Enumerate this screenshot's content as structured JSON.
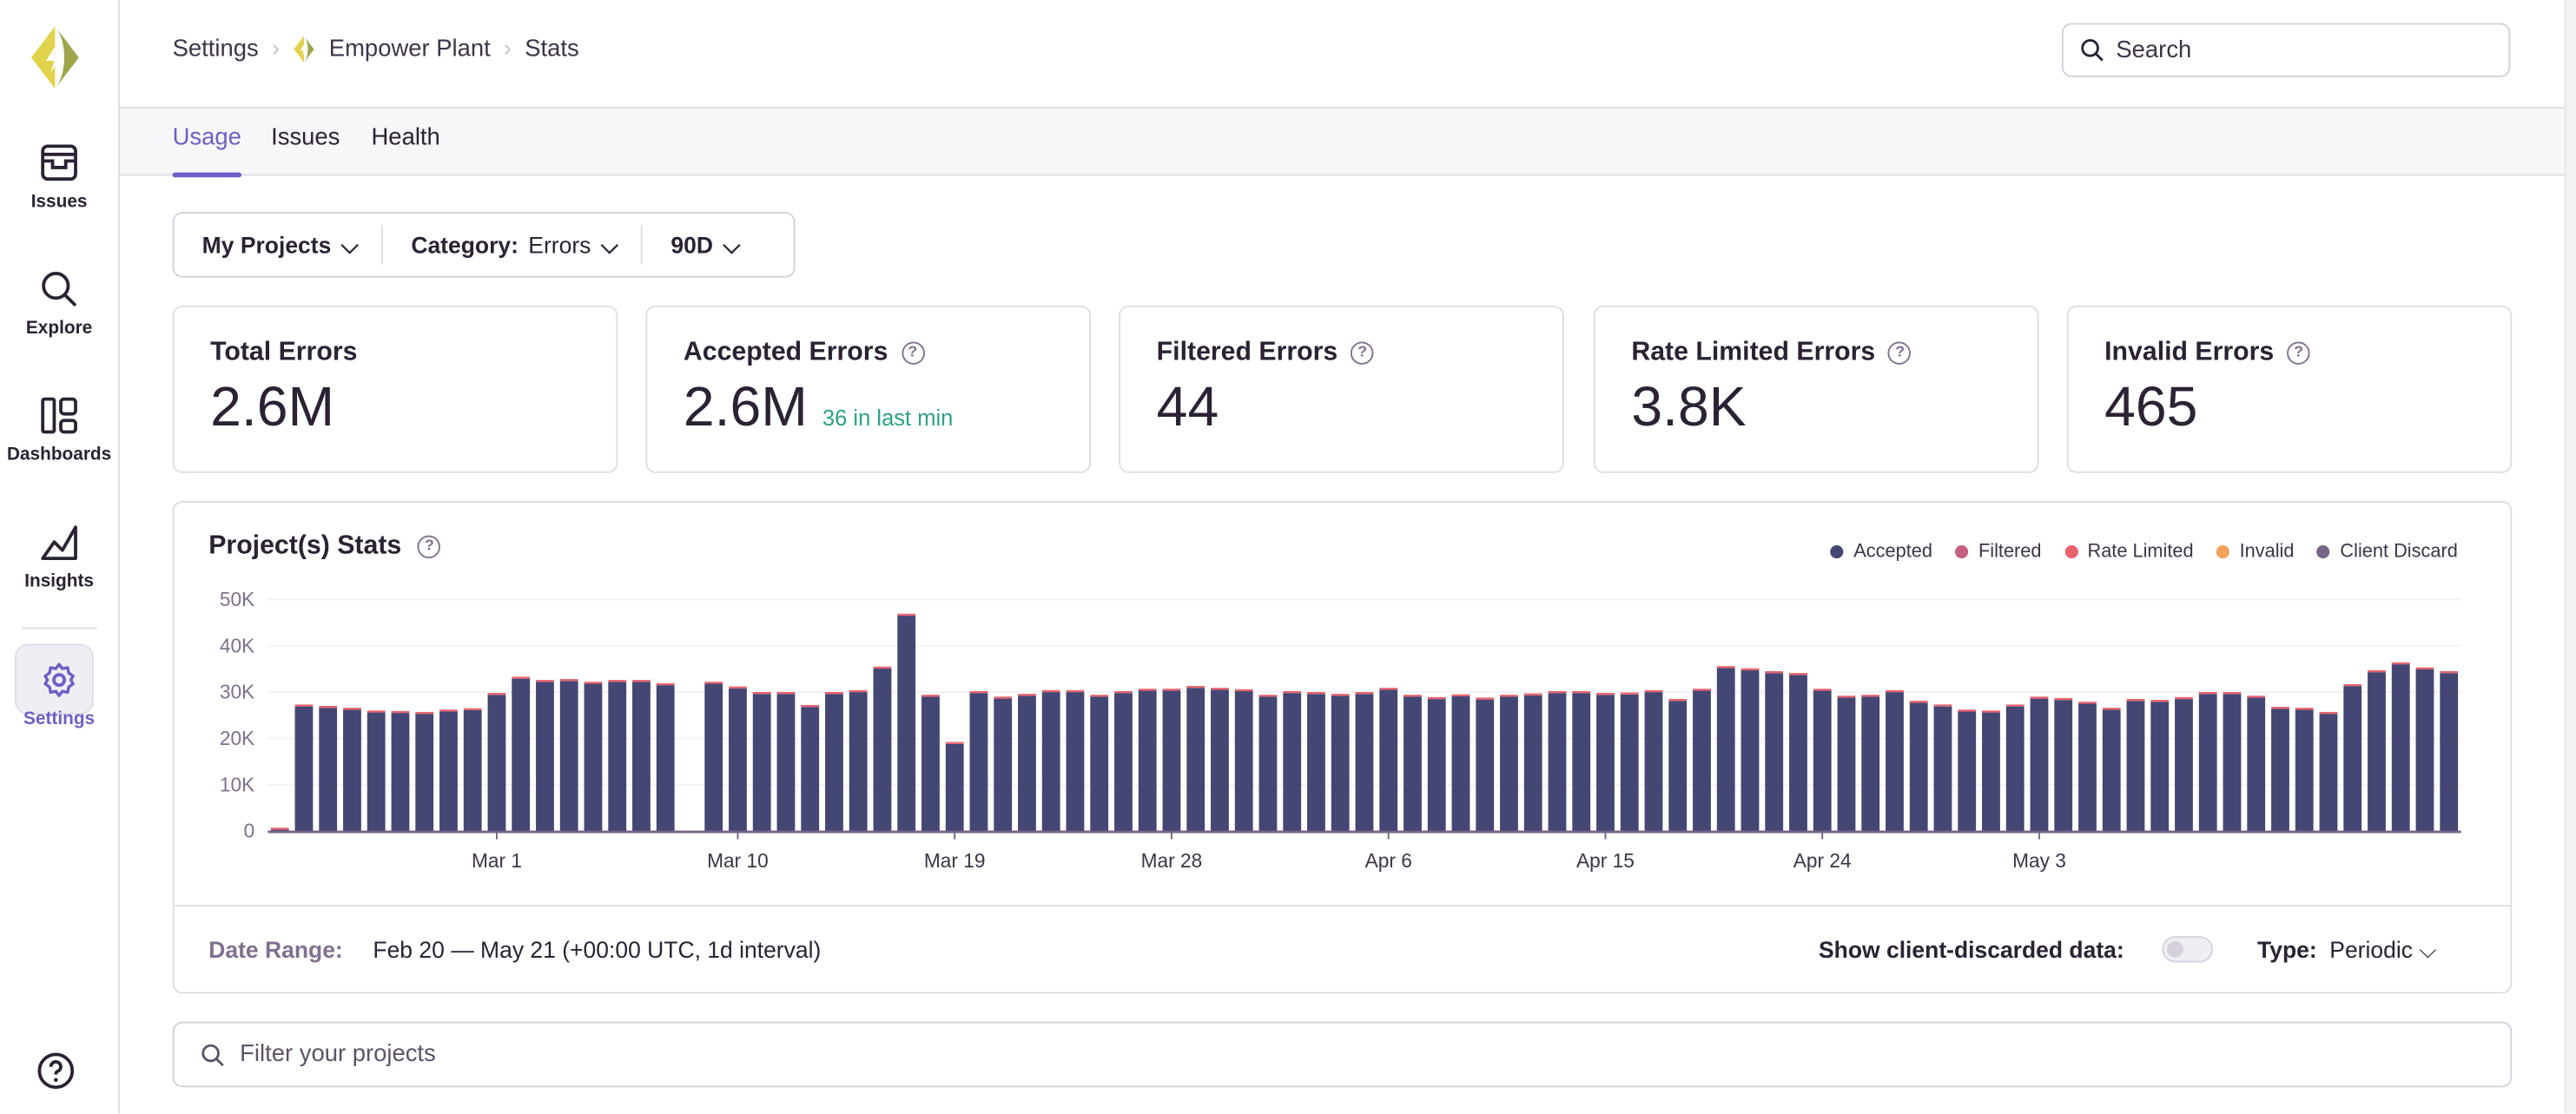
{
  "sidebar": {
    "items": [
      {
        "label": "Issues",
        "icon": "inbox-icon"
      },
      {
        "label": "Explore",
        "icon": "search-icon"
      },
      {
        "label": "Dashboards",
        "icon": "dashboard-icon"
      },
      {
        "label": "Insights",
        "icon": "chart-icon"
      },
      {
        "label": "Settings",
        "icon": "gear-icon",
        "active": true
      }
    ],
    "help_icon": "question-icon"
  },
  "breadcrumb": [
    "Settings",
    "Empower Plant",
    "Stats"
  ],
  "search": {
    "placeholder": "Search"
  },
  "tabs": [
    {
      "label": "Usage",
      "active": true
    },
    {
      "label": "Issues"
    },
    {
      "label": "Health"
    }
  ],
  "filters": {
    "projects": "My Projects",
    "category_label": "Category:",
    "category_value": "Errors",
    "period": "90D"
  },
  "cards": [
    {
      "title": "Total Errors",
      "value": "2.6M"
    },
    {
      "title": "Accepted Errors",
      "value": "2.6M",
      "sub": "36 in last min"
    },
    {
      "title": "Filtered Errors",
      "value": "44"
    },
    {
      "title": "Rate Limited Errors",
      "value": "3.8K"
    },
    {
      "title": "Invalid Errors",
      "value": "465"
    }
  ],
  "stats": {
    "title": "Project(s) Stats",
    "date_range_label": "Date Range:",
    "date_range_value": "Feb 20 — May 21 (+00:00 UTC, 1d interval)",
    "client_discard_label": "Show client-discarded data:",
    "client_discard_on": false,
    "type_label": "Type:",
    "type_value": "Periodic"
  },
  "project_filter": {
    "placeholder": "Filter your projects"
  },
  "colors": {
    "accent": "#6c5fc7",
    "accepted": "#444674",
    "filtered": "#c4617f",
    "rate_limited": "#e9626e",
    "invalid": "#f2a25a",
    "client_discard": "#776589",
    "positive": "#2ba185"
  },
  "chart_data": {
    "type": "bar",
    "stacked": true,
    "legend": [
      "Accepted",
      "Filtered",
      "Rate Limited",
      "Invalid",
      "Client Discard"
    ],
    "legend_position": "top-right",
    "yticks": [
      "0",
      "10K",
      "20K",
      "30K",
      "40K",
      "50K"
    ],
    "ylim": [
      0,
      50000
    ],
    "grid": true,
    "xtick_labels": [
      {
        "index": 9,
        "label": "Mar 1"
      },
      {
        "index": 19,
        "label": "Mar 10"
      },
      {
        "index": 28,
        "label": "Mar 19"
      },
      {
        "index": 37,
        "label": "Mar 28"
      },
      {
        "index": 46,
        "label": "Apr 6"
      },
      {
        "index": 55,
        "label": "Apr 15"
      },
      {
        "index": 64,
        "label": "Apr 24"
      },
      {
        "index": 73,
        "label": "May 3"
      }
    ],
    "series": [
      {
        "name": "Accepted",
        "values": [
          300,
          26900,
          26600,
          26200,
          25600,
          25500,
          25300,
          25800,
          26100,
          29400,
          32900,
          32200,
          32400,
          31800,
          32200,
          32200,
          31500,
          0,
          31800,
          30800,
          29600,
          29600,
          26800,
          29600,
          30000,
          35100,
          46500,
          29000,
          18800,
          29800,
          28600,
          29200,
          30000,
          30000,
          29000,
          29800,
          30300,
          30300,
          30900,
          30500,
          30200,
          29000,
          29800,
          29600,
          29200,
          29600,
          30500,
          29000,
          28500,
          29100,
          28400,
          29000,
          29300,
          29800,
          29800,
          29400,
          29500,
          30000,
          28100,
          30300,
          35200,
          34700,
          34100,
          33700,
          30300,
          28800,
          29000,
          30000,
          27700,
          26900,
          25800,
          25600,
          26900,
          28600,
          28300,
          27500,
          26200,
          28100,
          27900,
          28500,
          29600,
          29600,
          28800,
          26400,
          26200,
          25300,
          31300,
          34300,
          36000,
          34900,
          34100
        ]
      }
    ]
  }
}
